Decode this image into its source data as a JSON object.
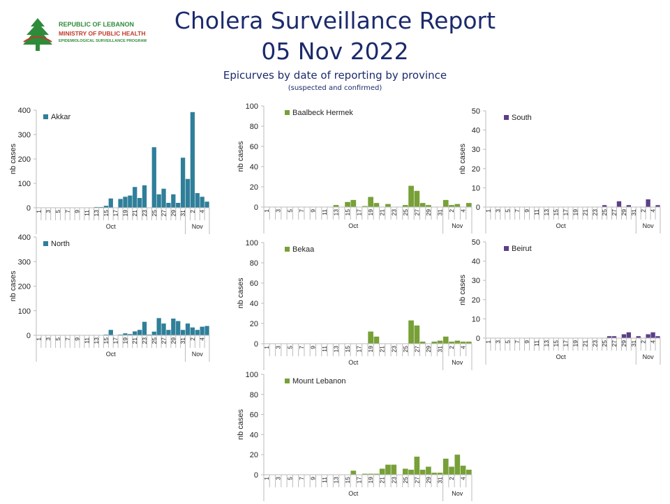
{
  "header": {
    "title_line1": "Cholera Surveillance Report",
    "title_line2": "05 Nov 2022",
    "subtitle": "Epicurves by date of reporting by province",
    "subnote": "(suspected and confirmed)"
  },
  "logo": {
    "line1": "REPUBLIC OF LEBANON",
    "line2": "MINISTRY OF PUBLIC HEALTH",
    "line3": "EPIDEMIOLOGICAL SURVEILLANCE PROGRAM",
    "icon": "cedar-tree-icon",
    "color_green": "#2e8b3a",
    "color_red": "#c0392b"
  },
  "chart_data": [
    {
      "type": "bar",
      "series": [
        {
          "name": "Akkar",
          "color": "#2f7f9a",
          "values": [
            0,
            0,
            0,
            0,
            0,
            0,
            0,
            0,
            0,
            0,
            0,
            0,
            3,
            3,
            8,
            38,
            0,
            36,
            45,
            50,
            85,
            40,
            92,
            0,
            248,
            55,
            78,
            20,
            55,
            20,
            205,
            118,
            392,
            60,
            45,
            25
          ]
        }
      ],
      "ylabel": "nb cases",
      "ylim": [
        0,
        400
      ],
      "yticks": [
        0,
        100,
        200,
        300,
        400
      ],
      "categories": [
        "1",
        "",
        "3",
        "",
        "5",
        "",
        "7",
        "",
        "9",
        "",
        "11",
        "",
        "13",
        "",
        "15",
        "",
        "17",
        "",
        "19",
        "",
        "21",
        "",
        "23",
        "",
        "25",
        "",
        "27",
        "",
        "29",
        "",
        "31",
        "",
        "2",
        "",
        "4",
        ""
      ],
      "month_labels": [
        "Oct",
        "Nov"
      ]
    },
    {
      "type": "bar",
      "series": [
        {
          "name": "Baalbeck Hermek",
          "color": "#77a037",
          "values": [
            0,
            0,
            0,
            0,
            0,
            0,
            0,
            0,
            0,
            0,
            0,
            0,
            2,
            0,
            5,
            7,
            0,
            1,
            10,
            4,
            0,
            3,
            0,
            0,
            2,
            21,
            16,
            4,
            2,
            0,
            0,
            7,
            2,
            3,
            0,
            4
          ]
        }
      ],
      "ylabel": "nb cases",
      "ylim": [
        0,
        100
      ],
      "yticks": [
        0,
        20,
        40,
        60,
        80,
        100
      ],
      "categories": [
        "1",
        "",
        "3",
        "",
        "5",
        "",
        "7",
        "",
        "9",
        "",
        "11",
        "",
        "13",
        "",
        "15",
        "",
        "17",
        "",
        "19",
        "",
        "21",
        "",
        "23",
        "",
        "25",
        "",
        "27",
        "",
        "29",
        "",
        "31",
        "",
        "2",
        "",
        "4",
        ""
      ],
      "month_labels": [
        "Oct",
        "Nov"
      ]
    },
    {
      "type": "bar",
      "series": [
        {
          "name": "South",
          "color": "#5c3f86",
          "values": [
            0,
            0,
            0,
            0,
            0,
            0,
            0,
            0,
            0,
            0,
            0,
            0,
            0,
            0,
            0,
            0,
            0,
            0,
            0,
            0,
            0,
            0,
            0,
            0,
            1,
            0,
            0,
            3,
            0,
            1,
            0,
            0,
            0,
            4,
            0,
            1
          ]
        }
      ],
      "ylabel": "nb cases",
      "ylim": [
        0,
        50
      ],
      "yticks": [
        0,
        10,
        20,
        30,
        40,
        50
      ],
      "categories": [
        "1",
        "",
        "3",
        "",
        "5",
        "",
        "7",
        "",
        "9",
        "",
        "11",
        "",
        "13",
        "",
        "15",
        "",
        "17",
        "",
        "19",
        "",
        "21",
        "",
        "23",
        "",
        "25",
        "",
        "27",
        "",
        "29",
        "",
        "31",
        "",
        "2",
        "",
        "4",
        ""
      ],
      "month_labels": [
        "Oct",
        "Nov"
      ]
    },
    {
      "type": "bar",
      "series": [
        {
          "name": "North",
          "color": "#2f7f9a",
          "values": [
            0,
            0,
            0,
            0,
            0,
            0,
            0,
            0,
            0,
            0,
            0,
            0,
            0,
            0,
            3,
            22,
            0,
            3,
            8,
            5,
            16,
            22,
            55,
            3,
            15,
            70,
            48,
            22,
            68,
            58,
            22,
            48,
            32,
            22,
            35,
            38
          ]
        }
      ],
      "ylabel": "nb cases",
      "ylim": [
        0,
        400
      ],
      "yticks": [
        0,
        100,
        200,
        300,
        400
      ],
      "categories": [
        "1",
        "",
        "3",
        "",
        "5",
        "",
        "7",
        "",
        "9",
        "",
        "11",
        "",
        "13",
        "",
        "15",
        "",
        "17",
        "",
        "19",
        "",
        "21",
        "",
        "23",
        "",
        "25",
        "",
        "27",
        "",
        "29",
        "",
        "31",
        "",
        "2",
        "",
        "4",
        ""
      ],
      "month_labels": [
        "Oct",
        "Nov"
      ]
    },
    {
      "type": "bar",
      "series": [
        {
          "name": "Bekaa",
          "color": "#77a037",
          "values": [
            0,
            0,
            0,
            0,
            0,
            0,
            0,
            0,
            0,
            0,
            0,
            0,
            0,
            0,
            0,
            0,
            0,
            0,
            12,
            7,
            0,
            0,
            0,
            0,
            0,
            23,
            18,
            2,
            0,
            2,
            3,
            7,
            2,
            3,
            2,
            2
          ]
        }
      ],
      "ylabel": "nb cases",
      "ylim": [
        0,
        100
      ],
      "yticks": [
        0,
        20,
        40,
        60,
        80,
        100
      ],
      "categories": [
        "1",
        "",
        "3",
        "",
        "5",
        "",
        "7",
        "",
        "9",
        "",
        "11",
        "",
        "13",
        "",
        "15",
        "",
        "17",
        "",
        "19",
        "",
        "21",
        "",
        "23",
        "",
        "25",
        "",
        "27",
        "",
        "29",
        "",
        "31",
        "",
        "2",
        "",
        "4",
        ""
      ],
      "month_labels": [
        "Oct",
        "Nov"
      ]
    },
    {
      "type": "bar",
      "series": [
        {
          "name": "Beirut",
          "color": "#5c3f86",
          "values": [
            0,
            0,
            0,
            0,
            0,
            0,
            0,
            0,
            0,
            0,
            0,
            0,
            0,
            0,
            0,
            0,
            0,
            0,
            0,
            0,
            0,
            0,
            0,
            0,
            0,
            1,
            1,
            0,
            2,
            3,
            0,
            1,
            0,
            2,
            3,
            1
          ]
        }
      ],
      "ylabel": "nb cases",
      "ylim": [
        0,
        50
      ],
      "yticks": [
        0,
        10,
        20,
        30,
        40,
        50
      ],
      "categories": [
        "1",
        "",
        "3",
        "",
        "5",
        "",
        "7",
        "",
        "9",
        "",
        "11",
        "",
        "13",
        "",
        "15",
        "",
        "17",
        "",
        "19",
        "",
        "21",
        "",
        "23",
        "",
        "25",
        "",
        "27",
        "",
        "29",
        "",
        "31",
        "",
        "2",
        "",
        "4",
        ""
      ],
      "month_labels": [
        "Oct",
        "Nov"
      ]
    },
    {
      "type": "bar",
      "series": [
        {
          "name": "Mount Lebanon",
          "color": "#77a037",
          "values": [
            0,
            0,
            0,
            0,
            0,
            0,
            0,
            0,
            0,
            0,
            0,
            0,
            0,
            0,
            0,
            4,
            0,
            1,
            1,
            1,
            6,
            10,
            10,
            0,
            6,
            5,
            18,
            5,
            8,
            2,
            2,
            16,
            8,
            20,
            9,
            5
          ]
        }
      ],
      "ylabel": "nb cases",
      "ylim": [
        0,
        100
      ],
      "yticks": [
        0,
        20,
        40,
        60,
        80,
        100
      ],
      "categories": [
        "1",
        "",
        "3",
        "",
        "5",
        "",
        "7",
        "",
        "9",
        "",
        "11",
        "",
        "13",
        "",
        "15",
        "",
        "17",
        "",
        "19",
        "",
        "21",
        "",
        "23",
        "",
        "25",
        "",
        "27",
        "",
        "29",
        "",
        "31",
        "",
        "2",
        "",
        "4",
        ""
      ],
      "month_labels": [
        "Oct",
        "Nov"
      ]
    }
  ]
}
